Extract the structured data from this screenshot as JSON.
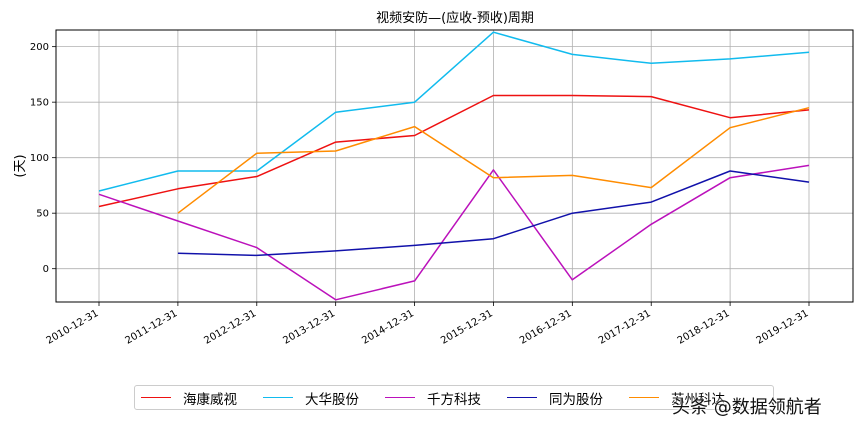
{
  "chart_data": {
    "type": "line",
    "title": "视频安防—(应收-预收)周期",
    "ylabel": "(天)",
    "xlabel": "",
    "categories": [
      "2010-12-31",
      "2011-12-31",
      "2012-12-31",
      "2013-12-31",
      "2014-12-31",
      "2015-12-31",
      "2016-12-31",
      "2017-12-31",
      "2018-12-31",
      "2019-12-31"
    ],
    "ylim": [
      -30,
      215
    ],
    "yticks": [
      0,
      50,
      100,
      150,
      200
    ],
    "grid": true,
    "legend_position": "bottom",
    "series": [
      {
        "name": "海康威视",
        "color": "#ee1111",
        "values": [
          56,
          72,
          83,
          114,
          120,
          156,
          156,
          155,
          136,
          143
        ]
      },
      {
        "name": "大华股份",
        "color": "#11bbee",
        "values": [
          70,
          88,
          88,
          141,
          150,
          213,
          193,
          185,
          189,
          195
        ]
      },
      {
        "name": "千方科技",
        "color": "#bb11bb",
        "values": [
          67,
          43,
          19,
          -28,
          -11,
          89,
          -10,
          40,
          82,
          93
        ]
      },
      {
        "name": "同为股份",
        "color": "#1111aa",
        "values": [
          null,
          14,
          12,
          16,
          21,
          27,
          50,
          60,
          88,
          78
        ]
      },
      {
        "name": "苏州科达",
        "color": "#ff8c00",
        "values": [
          null,
          50,
          104,
          106,
          128,
          82,
          84,
          73,
          127,
          145
        ]
      }
    ]
  },
  "watermark": "头条 @数据领航者"
}
